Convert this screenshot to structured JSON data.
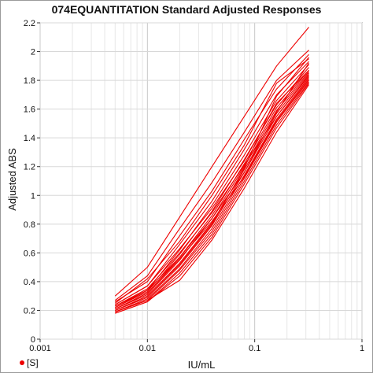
{
  "chart_data": {
    "type": "line",
    "title": "074EQUANTITATION Standard Adjusted Responses",
    "xlabel": "IU/mL",
    "ylabel": "Adjusted ABS",
    "x_scale": "log",
    "xlim": [
      0.001,
      1
    ],
    "ylim": [
      0,
      2.2
    ],
    "x_ticks": [
      "0.001",
      "0.01",
      "0.1",
      "1"
    ],
    "y_ticks": [
      "0",
      "0.2",
      "0.4",
      "0.6",
      "0.8",
      "1",
      "1.2",
      "1.4",
      "1.6",
      "1.8",
      "2",
      "2.2"
    ],
    "grid": true,
    "line_color": "#ee0000",
    "legend": [
      {
        "label": "[S]",
        "color": "#ee0000"
      }
    ],
    "x": [
      0.005,
      0.01,
      0.02,
      0.04,
      0.08,
      0.16,
      0.32
    ],
    "series": [
      {
        "values": [
          0.3,
          0.5,
          0.85,
          1.2,
          1.55,
          1.9,
          2.17
        ]
      },
      {
        "values": [
          0.27,
          0.44,
          0.77,
          1.09,
          1.44,
          1.8,
          2.01
        ]
      },
      {
        "values": [
          0.26,
          0.4,
          0.72,
          1.03,
          1.39,
          1.74,
          1.98
        ]
      },
      {
        "values": [
          0.24,
          0.37,
          0.66,
          0.96,
          1.32,
          1.7,
          1.93
        ]
      },
      {
        "values": [
          0.23,
          0.34,
          0.62,
          0.93,
          1.28,
          1.66,
          1.91
        ]
      },
      {
        "values": [
          0.22,
          0.33,
          0.59,
          0.89,
          1.25,
          1.63,
          1.89
        ]
      },
      {
        "values": [
          0.21,
          0.32,
          0.57,
          0.86,
          1.22,
          1.61,
          1.87
        ]
      },
      {
        "values": [
          0.21,
          0.31,
          0.55,
          0.84,
          1.2,
          1.59,
          1.86
        ]
      },
      {
        "values": [
          0.2,
          0.3,
          0.53,
          0.81,
          1.18,
          1.57,
          1.85
        ]
      },
      {
        "values": [
          0.2,
          0.29,
          0.51,
          0.79,
          1.16,
          1.55,
          1.84
        ]
      },
      {
        "values": [
          0.19,
          0.28,
          0.49,
          0.77,
          1.14,
          1.53,
          1.82
        ]
      },
      {
        "values": [
          0.19,
          0.27,
          0.48,
          0.75,
          1.12,
          1.51,
          1.8
        ]
      },
      {
        "values": [
          0.18,
          0.26,
          0.46,
          0.73,
          1.1,
          1.49,
          1.79
        ]
      },
      {
        "values": [
          0.18,
          0.26,
          0.44,
          0.71,
          1.08,
          1.47,
          1.78
        ]
      },
      {
        "values": [
          0.19,
          0.27,
          0.41,
          0.69,
          1.05,
          1.44,
          1.77
        ]
      },
      {
        "values": [
          0.22,
          0.34,
          0.57,
          0.84,
          1.16,
          1.58,
          1.92
        ]
      },
      {
        "values": [
          0.24,
          0.37,
          0.63,
          0.91,
          1.24,
          1.64,
          1.87
        ]
      },
      {
        "values": [
          0.2,
          0.3,
          0.52,
          0.8,
          1.19,
          1.69,
          1.96
        ]
      },
      {
        "values": [
          0.23,
          0.35,
          0.6,
          0.88,
          1.21,
          1.55,
          1.83
        ]
      },
      {
        "values": [
          0.21,
          0.32,
          0.56,
          0.82,
          1.13,
          1.52,
          1.81
        ]
      },
      {
        "values": [
          0.25,
          0.42,
          0.68,
          1.0,
          1.35,
          1.78,
          1.95
        ]
      }
    ]
  }
}
